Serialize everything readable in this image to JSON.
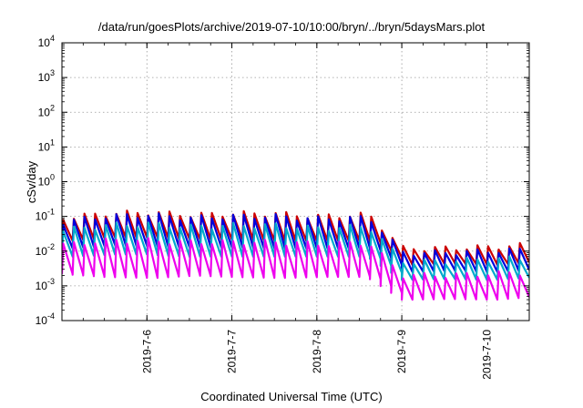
{
  "chart_data": {
    "type": "line",
    "title": "/data/run/goesPlots/archive/2019-07-10/10:00/bryn/../bryn/5daysMars.plot",
    "xlabel": "Coordinated Universal Time (UTC)",
    "ylabel": "cSv/day",
    "yscale": "log",
    "ylim": [
      0.0001,
      10000
    ],
    "xlim": [
      "2019-07-05 00:00",
      "2019-07-10 12:00"
    ],
    "grid": true,
    "y_ticks": [
      {
        "base": "10",
        "exp": "-4",
        "value": 0.0001
      },
      {
        "base": "10",
        "exp": "-3",
        "value": 0.001
      },
      {
        "base": "10",
        "exp": "-2",
        "value": 0.01
      },
      {
        "base": "10",
        "exp": "-1",
        "value": 0.1
      },
      {
        "base": "10",
        "exp": "0",
        "value": 1
      },
      {
        "base": "10",
        "exp": "1",
        "value": 10
      },
      {
        "base": "10",
        "exp": "2",
        "value": 100
      },
      {
        "base": "10",
        "exp": "3",
        "value": 1000
      },
      {
        "base": "10",
        "exp": "4",
        "value": 10000
      }
    ],
    "x_ticks": [
      "2019-7-6",
      "2019-7-7",
      "2019-7-8",
      "2019-7-9",
      "2019-7-10"
    ],
    "series": [
      {
        "color": "#cc0000",
        "x": [
          "2019-07-05 00:00",
          "2019-07-05 12:00",
          "2019-07-06 00:00",
          "2019-07-06 12:00",
          "2019-07-07 00:00",
          "2019-07-07 12:00",
          "2019-07-08 00:00",
          "2019-07-08 12:00",
          "2019-07-08 14:00",
          "2019-07-09 00:00",
          "2019-07-09 12:00",
          "2019-07-10 00:00",
          "2019-07-10 12:00"
        ],
        "peak": [
          0.09,
          0.12,
          0.13,
          0.11,
          0.12,
          0.12,
          0.1,
          0.11,
          0.12,
          0.012,
          0.012,
          0.013,
          0.015
        ],
        "trough": [
          0.02,
          0.025,
          0.025,
          0.022,
          0.022,
          0.02,
          0.02,
          0.02,
          0.02,
          0.004,
          0.0045,
          0.004,
          0.005
        ]
      },
      {
        "color": "#0000dd",
        "x": [
          "2019-07-05 00:00",
          "2019-07-05 12:00",
          "2019-07-06 00:00",
          "2019-07-06 12:00",
          "2019-07-07 00:00",
          "2019-07-07 12:00",
          "2019-07-08 00:00",
          "2019-07-08 12:00",
          "2019-07-08 14:00",
          "2019-07-09 00:00",
          "2019-07-09 12:00",
          "2019-07-10 00:00",
          "2019-07-10 12:00"
        ],
        "peak": [
          0.07,
          0.1,
          0.11,
          0.09,
          0.1,
          0.1,
          0.085,
          0.09,
          0.1,
          0.009,
          0.009,
          0.01,
          0.011
        ],
        "trough": [
          0.012,
          0.015,
          0.014,
          0.013,
          0.013,
          0.012,
          0.012,
          0.012,
          0.012,
          0.0025,
          0.0028,
          0.0025,
          0.003
        ]
      },
      {
        "color": "#00aacc",
        "x": [
          "2019-07-05 00:00",
          "2019-07-05 12:00",
          "2019-07-06 00:00",
          "2019-07-06 12:00",
          "2019-07-07 00:00",
          "2019-07-07 12:00",
          "2019-07-08 00:00",
          "2019-07-08 12:00",
          "2019-07-08 14:00",
          "2019-07-09 00:00",
          "2019-07-09 12:00",
          "2019-07-10 00:00",
          "2019-07-10 12:00"
        ],
        "peak": [
          0.04,
          0.055,
          0.06,
          0.05,
          0.055,
          0.055,
          0.045,
          0.05,
          0.055,
          0.005,
          0.005,
          0.006,
          0.006
        ],
        "trough": [
          0.007,
          0.008,
          0.008,
          0.007,
          0.007,
          0.007,
          0.007,
          0.007,
          0.007,
          0.0015,
          0.0016,
          0.0015,
          0.0018
        ]
      },
      {
        "color": "#ee00ee",
        "x": [
          "2019-07-05 00:00",
          "2019-07-05 12:00",
          "2019-07-06 00:00",
          "2019-07-06 12:00",
          "2019-07-07 00:00",
          "2019-07-07 12:00",
          "2019-07-08 00:00",
          "2019-07-08 12:00",
          "2019-07-08 14:00",
          "2019-07-09 00:00",
          "2019-07-09 12:00",
          "2019-07-10 00:00",
          "2019-07-10 12:00"
        ],
        "peak": [
          0.015,
          0.02,
          0.02,
          0.018,
          0.018,
          0.018,
          0.016,
          0.017,
          0.018,
          0.002,
          0.002,
          0.0022,
          0.0025
        ],
        "trough": [
          0.0022,
          0.0018,
          0.0017,
          0.002,
          0.0018,
          0.0017,
          0.0018,
          0.0018,
          0.0018,
          0.0004,
          0.00042,
          0.0004,
          0.0005
        ]
      }
    ]
  }
}
